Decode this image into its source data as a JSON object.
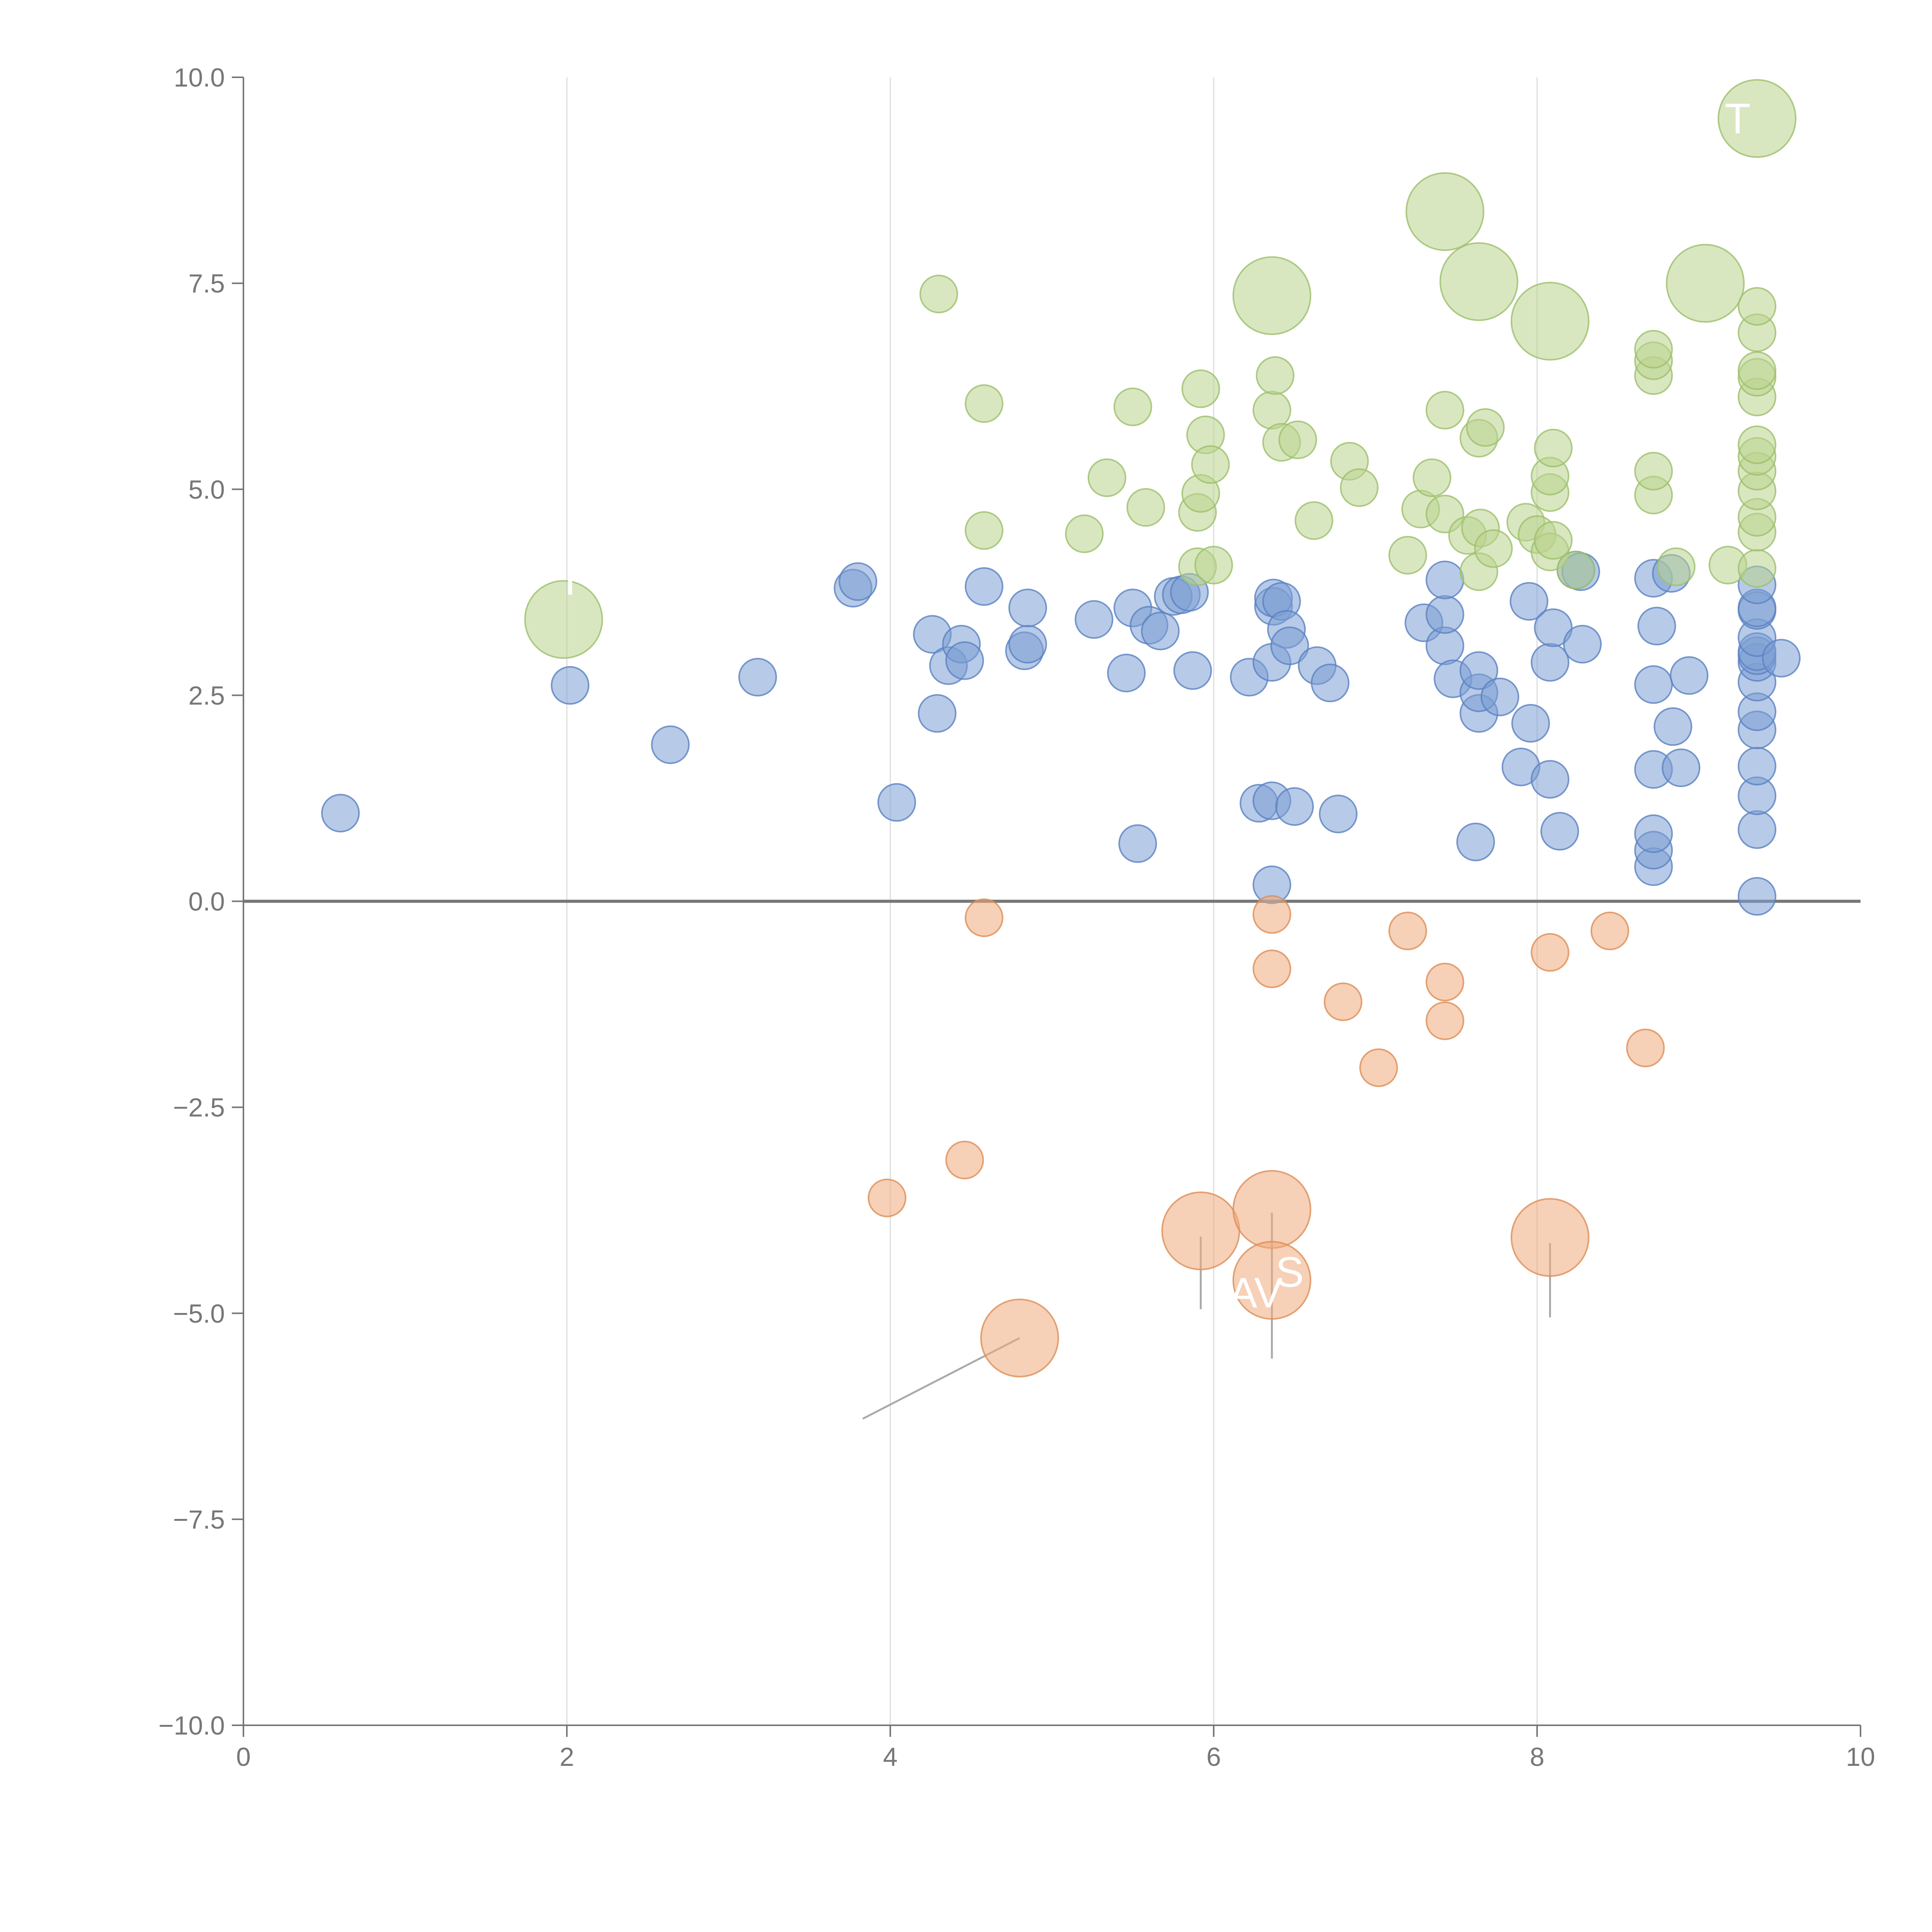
{
  "chart_data": {
    "type": "scatter",
    "title": "",
    "xlabel": "",
    "ylabel": "",
    "xlim": [
      0,
      10
    ],
    "ylim": [
      -10,
      10
    ],
    "x_ticks": [
      0,
      2,
      4,
      6,
      8,
      10
    ],
    "x_tick_labels": [
      "0",
      "2",
      "4",
      "6",
      "8",
      "10"
    ],
    "y_ticks": [
      -10,
      -7.5,
      -5,
      -2.5,
      0,
      2.5,
      5,
      7.5,
      10
    ],
    "y_tick_labels": [
      "−10.0",
      "−7.5",
      "−5.0",
      "−2.5",
      "0.0",
      "2.5",
      "5.0",
      "7.5",
      "10.0"
    ],
    "vertical_grid": true,
    "horizontal_grid": false,
    "zero_line": true,
    "colors": {
      "blue": "#7c9fd4",
      "green": "#b9d38e",
      "orange": "#eeaa7b"
    },
    "series": [
      {
        "color": "blue",
        "size": "small",
        "points": [
          [
            0.6,
            1.07
          ],
          [
            2.02,
            2.62
          ],
          [
            2.64,
            1.9
          ],
          [
            3.18,
            2.72
          ],
          [
            3.77,
            3.8
          ],
          [
            3.8,
            3.88
          ],
          [
            4.04,
            1.2
          ],
          [
            4.26,
            3.24
          ],
          [
            4.29,
            2.28
          ],
          [
            4.36,
            2.86
          ],
          [
            4.44,
            3.12
          ],
          [
            4.46,
            2.92
          ],
          [
            4.58,
            3.82
          ],
          [
            4.83,
            3.04
          ],
          [
            4.85,
            3.12
          ],
          [
            4.85,
            3.56
          ],
          [
            5.26,
            3.42
          ],
          [
            5.46,
            2.77
          ],
          [
            5.5,
            3.56
          ],
          [
            5.53,
            0.7
          ],
          [
            5.6,
            3.35
          ],
          [
            5.67,
            3.28
          ],
          [
            5.75,
            3.7
          ],
          [
            5.8,
            3.72
          ],
          [
            5.85,
            3.75
          ],
          [
            5.87,
            2.8
          ],
          [
            6.22,
            2.72
          ],
          [
            6.28,
            1.19
          ],
          [
            6.36,
            1.22
          ],
          [
            6.36,
            2.9
          ],
          [
            6.37,
            3.58
          ],
          [
            6.37,
            3.68
          ],
          [
            6.42,
            3.64
          ],
          [
            6.45,
            3.3
          ],
          [
            6.47,
            3.1
          ],
          [
            6.5,
            1.15
          ],
          [
            6.64,
            2.86
          ],
          [
            6.72,
            2.65
          ],
          [
            6.77,
            1.06
          ],
          [
            6.36,
            0.2
          ],
          [
            7.3,
            3.38
          ],
          [
            7.43,
            3.1
          ],
          [
            7.43,
            3.48
          ],
          [
            7.43,
            3.9
          ],
          [
            7.48,
            2.7
          ],
          [
            7.62,
            0.72
          ],
          [
            7.64,
            2.28
          ],
          [
            7.64,
            2.53
          ],
          [
            7.64,
            2.8
          ],
          [
            7.77,
            2.48
          ],
          [
            7.9,
            1.63
          ],
          [
            7.95,
            3.64
          ],
          [
            7.96,
            2.16
          ],
          [
            8.08,
            1.48
          ],
          [
            8.08,
            2.9
          ],
          [
            8.1,
            3.32
          ],
          [
            8.14,
            0.85
          ],
          [
            8.24,
            4.02
          ],
          [
            8.27,
            4.0
          ],
          [
            8.28,
            3.12
          ],
          [
            8.72,
            0.42
          ],
          [
            8.72,
            0.62
          ],
          [
            8.72,
            0.82
          ],
          [
            8.72,
            1.6
          ],
          [
            8.72,
            2.63
          ],
          [
            8.72,
            3.92
          ],
          [
            8.74,
            3.34
          ],
          [
            8.83,
            3.98
          ],
          [
            8.84,
            2.12
          ],
          [
            8.89,
            1.62
          ],
          [
            8.94,
            2.74
          ],
          [
            9.36,
            0.06
          ],
          [
            9.36,
            0.87
          ],
          [
            9.36,
            1.28
          ],
          [
            9.36,
            1.64
          ],
          [
            9.36,
            2.08
          ],
          [
            9.36,
            2.3
          ],
          [
            9.36,
            2.66
          ],
          [
            9.36,
            2.9
          ],
          [
            9.36,
            2.98
          ],
          [
            9.36,
            3.03
          ],
          [
            9.36,
            3.2
          ],
          [
            9.36,
            3.53
          ],
          [
            9.36,
            3.56
          ],
          [
            9.36,
            3.84
          ],
          [
            9.51,
            2.95
          ]
        ]
      },
      {
        "color": "green",
        "size": "small",
        "points": [
          [
            4.3,
            7.37
          ],
          [
            4.58,
            4.5
          ],
          [
            4.58,
            6.04
          ],
          [
            5.2,
            4.46
          ],
          [
            5.34,
            5.14
          ],
          [
            5.5,
            6.0
          ],
          [
            5.58,
            4.78
          ],
          [
            5.9,
            4.72
          ],
          [
            5.9,
            4.06
          ],
          [
            5.92,
            4.95
          ],
          [
            5.92,
            6.22
          ],
          [
            5.95,
            5.66
          ],
          [
            5.98,
            5.3
          ],
          [
            6.0,
            4.08
          ],
          [
            6.36,
            5.96
          ],
          [
            6.38,
            6.38
          ],
          [
            6.42,
            5.57
          ],
          [
            6.52,
            5.6
          ],
          [
            6.62,
            4.62
          ],
          [
            6.84,
            5.34
          ],
          [
            6.9,
            5.02
          ],
          [
            7.2,
            4.2
          ],
          [
            7.28,
            4.76
          ],
          [
            7.35,
            5.14
          ],
          [
            7.43,
            4.7
          ],
          [
            7.43,
            5.96
          ],
          [
            7.57,
            4.44
          ],
          [
            7.64,
            4.0
          ],
          [
            7.64,
            5.62
          ],
          [
            7.65,
            4.53
          ],
          [
            7.68,
            5.75
          ],
          [
            7.73,
            4.28
          ],
          [
            7.93,
            4.6
          ],
          [
            8.0,
            4.45
          ],
          [
            8.08,
            4.24
          ],
          [
            8.08,
            4.96
          ],
          [
            8.08,
            5.16
          ],
          [
            8.1,
            5.5
          ],
          [
            8.1,
            4.38
          ],
          [
            8.24,
            4.02
          ],
          [
            8.72,
            4.93
          ],
          [
            8.72,
            5.22
          ],
          [
            8.72,
            6.38
          ],
          [
            8.72,
            6.56
          ],
          [
            8.72,
            6.7
          ],
          [
            8.86,
            4.06
          ],
          [
            9.18,
            4.08
          ],
          [
            9.36,
            4.04
          ],
          [
            9.36,
            4.48
          ],
          [
            9.36,
            4.66
          ],
          [
            9.36,
            4.98
          ],
          [
            9.36,
            5.22
          ],
          [
            9.36,
            5.4
          ],
          [
            9.36,
            5.54
          ],
          [
            9.36,
            6.12
          ],
          [
            9.36,
            6.36
          ],
          [
            9.36,
            6.44
          ],
          [
            9.36,
            6.9
          ],
          [
            9.36,
            7.22
          ]
        ]
      },
      {
        "color": "green",
        "size": "large",
        "points": [
          [
            1.98,
            3.42
          ],
          [
            6.36,
            7.35
          ],
          [
            7.43,
            8.37
          ],
          [
            7.64,
            7.52
          ],
          [
            8.08,
            7.04
          ],
          [
            9.04,
            7.5
          ],
          [
            9.36,
            9.5
          ]
        ]
      },
      {
        "color": "orange",
        "size": "small",
        "points": [
          [
            3.98,
            -3.6
          ],
          [
            4.46,
            -3.14
          ],
          [
            4.58,
            -0.2
          ],
          [
            6.36,
            -0.16
          ],
          [
            6.36,
            -0.82
          ],
          [
            6.8,
            -1.22
          ],
          [
            7.02,
            -2.02
          ],
          [
            7.2,
            -0.36
          ],
          [
            7.43,
            -0.98
          ],
          [
            7.43,
            -1.45
          ],
          [
            8.08,
            -0.62
          ],
          [
            8.45,
            -0.36
          ],
          [
            8.67,
            -1.78
          ]
        ]
      },
      {
        "color": "orange",
        "size": "large",
        "points": [
          [
            4.8,
            -5.3
          ],
          [
            5.92,
            -4.0
          ],
          [
            6.36,
            -3.74
          ],
          [
            6.36,
            -4.6
          ],
          [
            8.08,
            -4.08
          ]
        ]
      }
    ],
    "annotations": [
      {
        "text": "T",
        "x": 9.24,
        "y": 9.5
      },
      {
        "text": "S",
        "x": 6.47,
        "y": -4.5
      },
      {
        "text": "AV",
        "x": 6.26,
        "y": -4.75
      },
      {
        "text": "I",
        "x": 2.02,
        "y": 3.9
      }
    ],
    "callouts": [
      {
        "style": "dark",
        "from": [
          4.8,
          -5.3
        ],
        "to": [
          3.83,
          -6.28
        ]
      },
      {
        "style": "dark",
        "from": [
          5.92,
          -4.07
        ],
        "to": [
          5.92,
          -4.95
        ]
      },
      {
        "style": "dark",
        "from": [
          6.36,
          -3.78
        ],
        "to": [
          6.36,
          -5.55
        ]
      },
      {
        "style": "dark",
        "from": [
          8.08,
          -4.15
        ],
        "to": [
          8.08,
          -5.05
        ]
      },
      {
        "style": "light",
        "from": [
          7.43,
          8.37
        ],
        "to": [
          7.35,
          8.55
        ]
      },
      {
        "style": "light",
        "from": [
          7.64,
          7.52
        ],
        "to": [
          7.52,
          7.3
        ]
      },
      {
        "style": "light",
        "from": [
          8.08,
          7.04
        ],
        "to": [
          8.22,
          7.28
        ]
      },
      {
        "style": "light",
        "from": [
          6.36,
          7.35
        ],
        "to": [
          6.32,
          7.5
        ]
      }
    ]
  }
}
